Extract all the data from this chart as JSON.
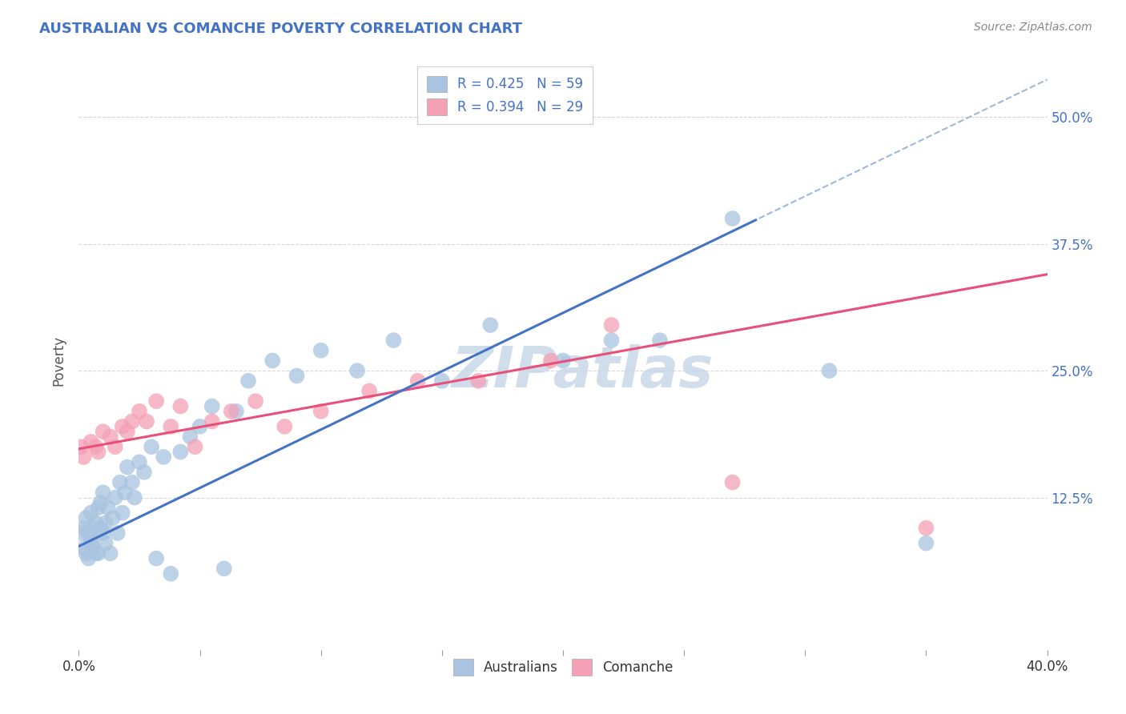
{
  "title": "AUSTRALIAN VS COMANCHE POVERTY CORRELATION CHART",
  "source": "Source: ZipAtlas.com",
  "ylabel": "Poverty",
  "xlim": [
    0.0,
    0.4
  ],
  "ylim": [
    -0.025,
    0.545
  ],
  "xtick_positions": [
    0.0,
    0.05,
    0.1,
    0.15,
    0.2,
    0.25,
    0.3,
    0.35,
    0.4
  ],
  "xtick_labels": [
    "0.0%",
    "",
    "",
    "",
    "",
    "",
    "",
    "",
    "40.0%"
  ],
  "ytick_positions": [
    0.125,
    0.25,
    0.375,
    0.5
  ],
  "ytick_labels": [
    "12.5%",
    "25.0%",
    "37.5%",
    "50.0%"
  ],
  "R_australian": 0.425,
  "N_australian": 59,
  "R_comanche": 0.394,
  "N_comanche": 29,
  "blue_color": "#a8c4e0",
  "pink_color": "#f4a0b5",
  "blue_line_color": "#4472C4",
  "pink_line_color": "#E8507A",
  "dashed_line_color": "#a0b8d8",
  "title_color": "#4472C4",
  "source_color": "#888888",
  "watermark_color": "#c8d8e8",
  "grid_color": "#d8d8d8",
  "aus_x": [
    0.001,
    0.002,
    0.002,
    0.003,
    0.003,
    0.004,
    0.004,
    0.005,
    0.005,
    0.005,
    0.006,
    0.006,
    0.007,
    0.007,
    0.008,
    0.008,
    0.009,
    0.009,
    0.01,
    0.01,
    0.011,
    0.011,
    0.012,
    0.013,
    0.014,
    0.015,
    0.016,
    0.017,
    0.018,
    0.019,
    0.02,
    0.022,
    0.023,
    0.025,
    0.027,
    0.03,
    0.032,
    0.035,
    0.038,
    0.042,
    0.046,
    0.05,
    0.055,
    0.06,
    0.065,
    0.07,
    0.08,
    0.09,
    0.1,
    0.115,
    0.13,
    0.15,
    0.17,
    0.2,
    0.22,
    0.24,
    0.27,
    0.31,
    0.35
  ],
  "aus_y": [
    0.09,
    0.095,
    0.075,
    0.105,
    0.07,
    0.09,
    0.065,
    0.08,
    0.11,
    0.085,
    0.095,
    0.075,
    0.1,
    0.07,
    0.115,
    0.07,
    0.095,
    0.12,
    0.09,
    0.13,
    0.1,
    0.08,
    0.115,
    0.07,
    0.105,
    0.125,
    0.09,
    0.14,
    0.11,
    0.13,
    0.155,
    0.14,
    0.125,
    0.16,
    0.15,
    0.175,
    0.065,
    0.165,
    0.05,
    0.17,
    0.185,
    0.195,
    0.215,
    0.055,
    0.21,
    0.24,
    0.26,
    0.245,
    0.27,
    0.25,
    0.28,
    0.24,
    0.295,
    0.26,
    0.28,
    0.28,
    0.4,
    0.25,
    0.08
  ],
  "com_x": [
    0.001,
    0.002,
    0.005,
    0.007,
    0.008,
    0.01,
    0.013,
    0.015,
    0.018,
    0.02,
    0.022,
    0.025,
    0.028,
    0.032,
    0.038,
    0.042,
    0.048,
    0.055,
    0.063,
    0.073,
    0.085,
    0.1,
    0.12,
    0.14,
    0.165,
    0.195,
    0.22,
    0.27,
    0.35
  ],
  "com_y": [
    0.175,
    0.165,
    0.18,
    0.175,
    0.17,
    0.19,
    0.185,
    0.175,
    0.195,
    0.19,
    0.2,
    0.21,
    0.2,
    0.22,
    0.195,
    0.215,
    0.175,
    0.2,
    0.21,
    0.22,
    0.195,
    0.21,
    0.23,
    0.24,
    0.24,
    0.26,
    0.295,
    0.14,
    0.095
  ]
}
